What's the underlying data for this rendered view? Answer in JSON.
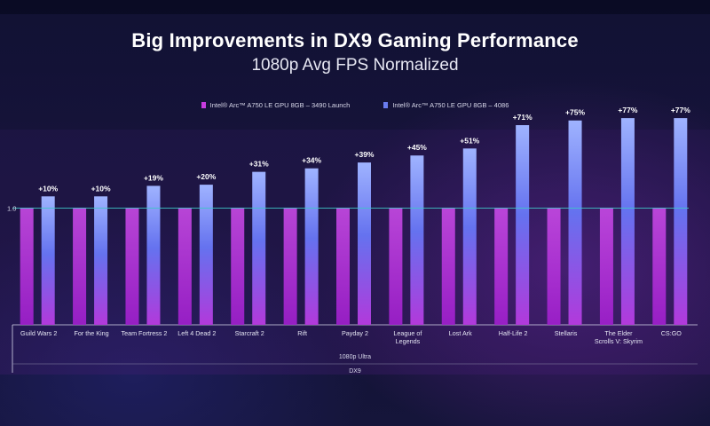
{
  "chart_data": {
    "type": "bar",
    "title": "Big Improvements in DX9 Gaming Performance",
    "subtitle": "1080p Avg FPS Normalized",
    "xlabel_lines": [
      "1080p Ultra",
      "DX9"
    ],
    "baseline_tick": "1.0",
    "baseline_value": 1.0,
    "ylim": [
      0,
      1.9
    ],
    "categories": [
      "Guild Wars 2",
      "For the King",
      "Team Fortress 2",
      "Left 4 Dead 2",
      "Starcraft 2",
      "Rift",
      "Payday 2",
      "League of Legends",
      "Lost Ark",
      "Half-Life 2",
      "Stellaris",
      "The Elder Scrolls V: Skyrim",
      "CS:GO"
    ],
    "series": [
      {
        "name": "Intel® Arc™ A750 LE GPU 8GB – 3490 Launch",
        "color": "#c83ce0",
        "values": [
          1.0,
          1.0,
          1.0,
          1.0,
          1.0,
          1.0,
          1.0,
          1.0,
          1.0,
          1.0,
          1.0,
          1.0,
          1.0
        ]
      },
      {
        "name": "Intel® Arc™ A750 LE GPU 8GB – 4086",
        "color": "#6a7cf0",
        "values": [
          1.1,
          1.1,
          1.19,
          1.2,
          1.31,
          1.34,
          1.39,
          1.45,
          1.51,
          1.71,
          1.75,
          1.77,
          1.77
        ]
      }
    ],
    "data_labels": [
      "+10%",
      "+10%",
      "+19%",
      "+20%",
      "+31%",
      "+34%",
      "+39%",
      "+45%",
      "+51%",
      "+71%",
      "+75%",
      "+77%",
      "+77%"
    ],
    "grid": false,
    "legend_position": "top-center"
  }
}
